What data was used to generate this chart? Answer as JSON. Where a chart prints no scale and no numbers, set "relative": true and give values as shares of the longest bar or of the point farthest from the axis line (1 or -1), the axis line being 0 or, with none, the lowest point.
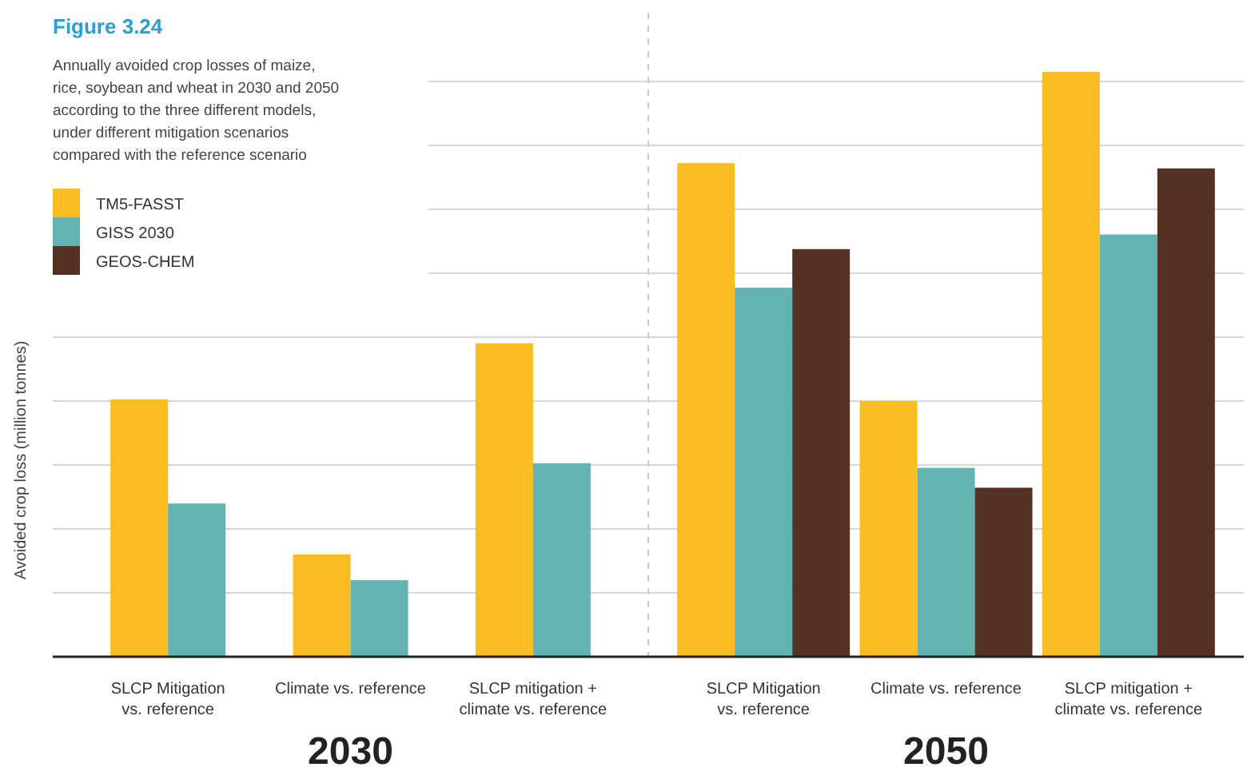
{
  "chart_data": {
    "type": "bar",
    "title": "Figure 3.24",
    "subtitle": "Annually avoided crop losses of maize, rice, soybean and wheat in 2030 and 2050 according to the three different models, under different mitigation scenarios compared with the reference scenario",
    "ylabel": "Avoided crop loss (million tonnes)",
    "relative": true,
    "grid": "y",
    "legend": "top left",
    "categories": [
      "SLCP Mitigation vs. reference",
      "Climate vs. reference",
      "SLCP mitigation + climate vs. reference",
      "SLCP Mitigation vs. reference",
      "Climate vs. reference",
      "SLCP mitigation + climate vs. reference"
    ],
    "annotations": [
      "2030",
      "2050"
    ],
    "series": [
      {
        "name": "TM5-FASST",
        "color": "#f9bd22",
        "values": [
          0.44,
          0.175,
          0.536,
          0.844,
          0.437,
          1
        ]
      },
      {
        "name": "GISS 2030",
        "color": "#62b3b2",
        "values": [
          0.262,
          0.131,
          0.331,
          0.631,
          0.323,
          0.722
        ]
      },
      {
        "name": "GEOS-CHEM",
        "color": "#553124",
        "values": [
          null,
          null,
          null,
          0.697,
          0.289,
          0.835
        ]
      }
    ]
  }
}
